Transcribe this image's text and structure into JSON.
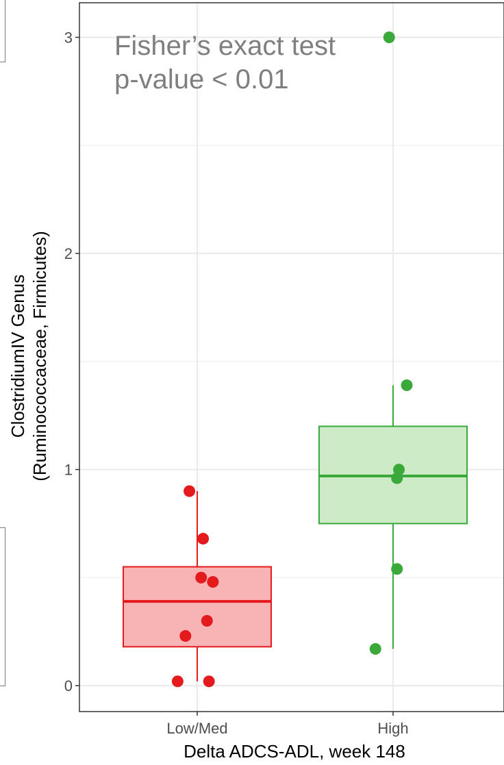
{
  "chart_data": {
    "type": "box",
    "title": "",
    "xlabel": "Delta ADCS-ADL, week 148",
    "ylabel_lines": [
      "ClostridiumIV Genus",
      "(Ruminococcaceae, Firmicutes)"
    ],
    "ylim": [
      -0.12,
      3.16
    ],
    "yticks": [
      0,
      1,
      2,
      3
    ],
    "ytick_labels": [
      "0",
      "1",
      "2",
      "3"
    ],
    "grid": true,
    "annotation_lines": [
      "Fisher’s exact test",
      "p-value < 0.01"
    ],
    "categories": [
      "Low/Med",
      "High"
    ],
    "series": [
      {
        "category": "Low/Med",
        "color": "#e41a1c",
        "fill": "#f8b4b4",
        "box": {
          "whisker_low": 0.02,
          "q1": 0.18,
          "median": 0.39,
          "q3": 0.55,
          "whisker_high": 0.9
        },
        "points": [
          {
            "jitter": -0.04,
            "y": 0.9
          },
          {
            "jitter": 0.03,
            "y": 0.68
          },
          {
            "jitter": 0.02,
            "y": 0.5
          },
          {
            "jitter": 0.08,
            "y": 0.48
          },
          {
            "jitter": 0.05,
            "y": 0.3
          },
          {
            "jitter": -0.06,
            "y": 0.23
          },
          {
            "jitter": -0.1,
            "y": 0.02
          },
          {
            "jitter": 0.06,
            "y": 0.02
          }
        ]
      },
      {
        "category": "High",
        "color": "#3aa93a",
        "fill": "#cdebc7",
        "box": {
          "whisker_low": 0.17,
          "q1": 0.75,
          "median": 0.97,
          "q3": 1.2,
          "whisker_high": 1.39
        },
        "points": [
          {
            "jitter": -0.02,
            "y": 3.0
          },
          {
            "jitter": 0.07,
            "y": 1.39
          },
          {
            "jitter": 0.03,
            "y": 1.0
          },
          {
            "jitter": 0.02,
            "y": 0.96
          },
          {
            "jitter": 0.02,
            "y": 0.54
          },
          {
            "jitter": -0.09,
            "y": 0.17
          }
        ]
      }
    ]
  }
}
